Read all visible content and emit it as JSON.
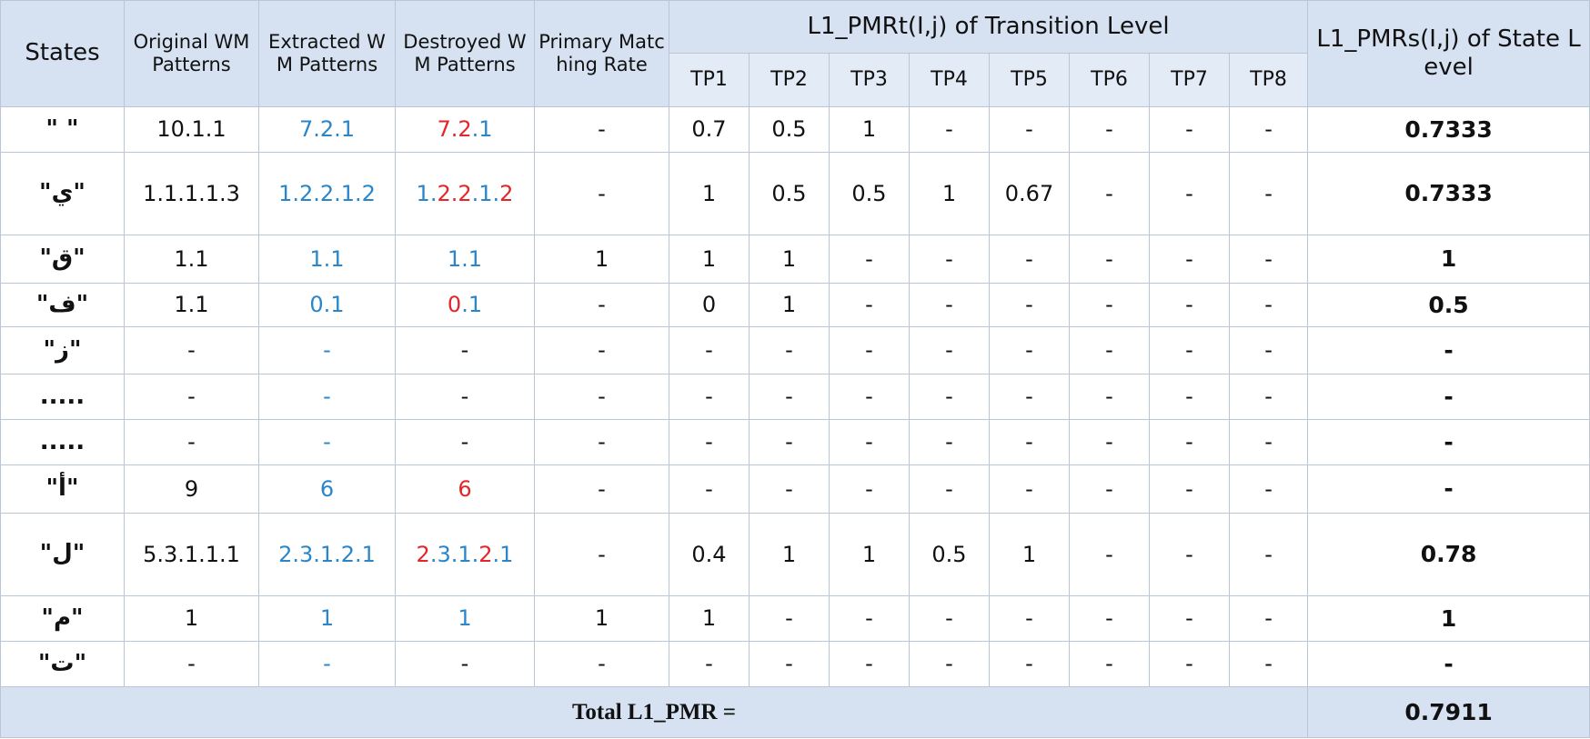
{
  "header": {
    "states": "States",
    "original": "Original WM Patterns",
    "extracted": "Extracted WM Patterns",
    "destroyed": "Destroyed WM Patterns",
    "primary": "Primary Matching Rate",
    "transition": "L1_PMRt(I,j) of Transition Level",
    "tps": [
      "TP1",
      "TP2",
      "TP3",
      "TP4",
      "TP5",
      "TP6",
      "TP7",
      "TP8"
    ],
    "state_level": "L1_PMRs(I,j) of State Level"
  },
  "colors": {
    "red": "#e2262a",
    "blue": "#2a86c9",
    "dark": "#111111"
  },
  "rows": [
    {
      "state": "\"  \"",
      "original": "10.1.1",
      "extracted": "7.2.1",
      "destroyed": [
        {
          "text": "7.2",
          "color": "red"
        },
        {
          "text": ".1",
          "color": "blue"
        }
      ],
      "primary": "-",
      "tp": [
        "0.7",
        "0.5",
        "1",
        "-",
        "-",
        "-",
        "-",
        "-"
      ],
      "pmrs": "0.7333"
    },
    {
      "state": "\"ي\"",
      "original": "1.1.1.1.3",
      "extracted": "1.2.2.1.2",
      "destroyed": [
        {
          "text": "1.",
          "color": "blue"
        },
        {
          "text": "2.2",
          "color": "red"
        },
        {
          "text": ".1.",
          "color": "blue"
        },
        {
          "text": "2",
          "color": "red"
        }
      ],
      "primary": "-",
      "tp": [
        "1",
        "0.5",
        "0.5",
        "1",
        "0.67",
        "-",
        "-",
        "-"
      ],
      "pmrs": "0.7333"
    },
    {
      "state": "\"ق\"",
      "original": "1.1",
      "extracted": "1.1",
      "destroyed": [
        {
          "text": "1.1",
          "color": "blue"
        }
      ],
      "primary": "1",
      "tp": [
        "1",
        "1",
        "-",
        "-",
        "-",
        "-",
        "-",
        "-"
      ],
      "pmrs": "1"
    },
    {
      "state": "\"ف\"",
      "original": "1.1",
      "extracted": "0.1",
      "destroyed": [
        {
          "text": "0",
          "color": "red"
        },
        {
          "text": ".1",
          "color": "blue"
        }
      ],
      "primary": "-",
      "tp": [
        "0",
        "1",
        "-",
        "-",
        "-",
        "-",
        "-",
        "-"
      ],
      "pmrs": "0.5"
    },
    {
      "state": "\"ز\"",
      "original": "-",
      "extracted": "-",
      "destroyed": [
        {
          "text": "-",
          "color": "dark"
        }
      ],
      "primary": "-",
      "tp": [
        "-",
        "-",
        "-",
        "-",
        "-",
        "-",
        "-",
        "-"
      ],
      "pmrs": "-"
    },
    {
      "state": ".....",
      "original": "-",
      "extracted": "-",
      "destroyed": [
        {
          "text": "-",
          "color": "dark"
        }
      ],
      "primary": "-",
      "tp": [
        "-",
        "-",
        "-",
        "-",
        "-",
        "-",
        "-",
        "-"
      ],
      "pmrs": "-"
    },
    {
      "state": ".....",
      "original": "-",
      "extracted": "-",
      "destroyed": [
        {
          "text": "-",
          "color": "dark"
        }
      ],
      "primary": "-",
      "tp": [
        "-",
        "-",
        "-",
        "-",
        "-",
        "-",
        "-",
        "-"
      ],
      "pmrs": "-"
    },
    {
      "state": "\"أ\"",
      "original": "9",
      "extracted": "6",
      "destroyed": [
        {
          "text": "6",
          "color": "red"
        }
      ],
      "primary": "-",
      "tp": [
        "-",
        "-",
        "-",
        "-",
        "-",
        "-",
        "-",
        "-"
      ],
      "pmrs": "-"
    },
    {
      "state": "\"ل\"",
      "original": "5.3.1.1.1",
      "extracted": "2.3.1.2.1",
      "destroyed": [
        {
          "text": "2",
          "color": "red"
        },
        {
          "text": ".3.1.",
          "color": "blue"
        },
        {
          "text": "2",
          "color": "red"
        },
        {
          "text": ".1",
          "color": "blue"
        }
      ],
      "primary": "-",
      "tp": [
        "0.4",
        "1",
        "1",
        "0.5",
        "1",
        "-",
        "-",
        "-"
      ],
      "pmrs": "0.78"
    },
    {
      "state": "\"م\"",
      "original": "1",
      "extracted": "1",
      "destroyed": [
        {
          "text": "1",
          "color": "blue"
        }
      ],
      "primary": "1",
      "tp": [
        "1",
        "-",
        "-",
        "-",
        "-",
        "-",
        "-",
        "-"
      ],
      "pmrs": "1"
    },
    {
      "state": "\"ت\"",
      "original": "-",
      "extracted": "-",
      "destroyed": [
        {
          "text": "-",
          "color": "dark"
        }
      ],
      "primary": "-",
      "tp": [
        "-",
        "-",
        "-",
        "-",
        "-",
        "-",
        "-",
        "-"
      ],
      "pmrs": "-"
    }
  ],
  "total": {
    "label": "Total L1_PMR =",
    "value": "0.7911"
  }
}
